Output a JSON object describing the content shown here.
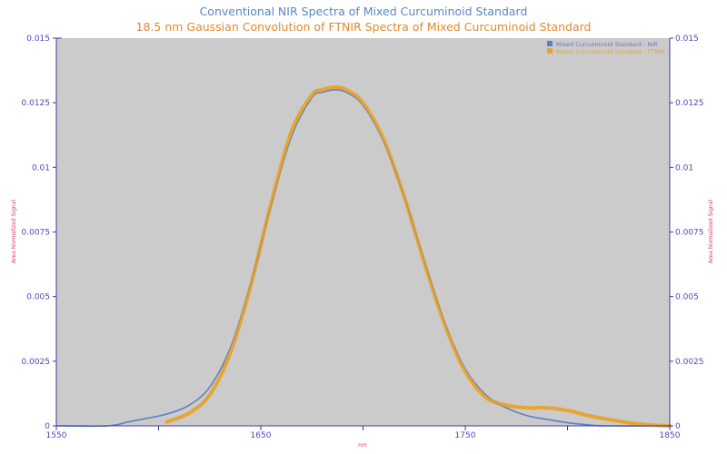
{
  "chart_data": {
    "type": "line",
    "title": "Conventional NIR Spectra of Mixed Curcuminoid Standard",
    "subtitle": "18.5 nm Gaussian Convolution of FTNIR Spectra of Mixed Curcuminoid Standard",
    "xlabel": "nm",
    "ylabel": "Area Normalized Signal",
    "ylabel_right": "Area Normalized Signal",
    "xlim": [
      1550,
      1850
    ],
    "ylim": [
      0,
      0.015
    ],
    "x_ticks": [
      "1550",
      "1650",
      "1750",
      "1850"
    ],
    "x_minor_ticks": [
      1600,
      1700,
      1800
    ],
    "y_ticks": [
      "0",
      "0.0025",
      "0.005",
      "0.0075",
      "0.01",
      "0.0125",
      "0.015"
    ],
    "grid": false,
    "legend_position": "top-right",
    "plot_background": "#cbcbcb",
    "series": [
      {
        "name": "Mixed Curcuminoid Standard - NIR",
        "color": "#5b82c4",
        "x": [
          1550,
          1575,
          1585,
          1595,
          1605,
          1615,
          1625,
          1635,
          1645,
          1655,
          1665,
          1675,
          1680,
          1686,
          1692,
          1700,
          1710,
          1720,
          1730,
          1740,
          1750,
          1760,
          1770,
          1780,
          1790,
          1800,
          1810,
          1818,
          1850
        ],
        "values": [
          0,
          0,
          0.00015,
          0.0003,
          0.00048,
          0.0008,
          0.0015,
          0.003,
          0.0055,
          0.0085,
          0.0112,
          0.0127,
          0.0129,
          0.013,
          0.0129,
          0.0124,
          0.011,
          0.0089,
          0.0064,
          0.004,
          0.0022,
          0.0012,
          0.0007,
          0.0004,
          0.00025,
          0.00012,
          4e-05,
          0,
          0
        ]
      },
      {
        "name": "Mixed Curcuminoid Standard - FTNIR",
        "color": "#e6a533",
        "x": [
          1604,
          1615,
          1625,
          1635,
          1645,
          1655,
          1665,
          1675,
          1680,
          1686,
          1692,
          1700,
          1710,
          1720,
          1730,
          1740,
          1750,
          1760,
          1770,
          1780,
          1790,
          1800,
          1810,
          1820,
          1830,
          1840,
          1850
        ],
        "values": [
          0.00015,
          0.0005,
          0.0012,
          0.0028,
          0.0054,
          0.0086,
          0.0114,
          0.0128,
          0.013,
          0.0131,
          0.013,
          0.0125,
          0.0111,
          0.0089,
          0.0063,
          0.0039,
          0.0021,
          0.0011,
          0.0008,
          0.0007,
          0.0007,
          0.0006,
          0.0004,
          0.00025,
          0.00012,
          4e-05,
          0
        ]
      }
    ]
  }
}
